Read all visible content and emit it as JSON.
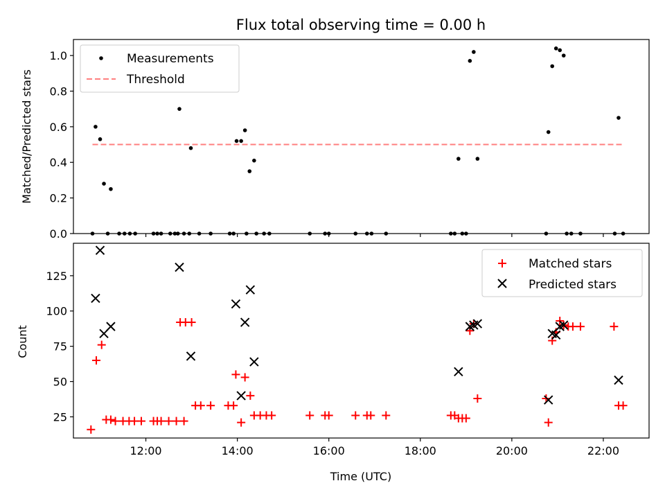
{
  "figure": {
    "title": "Flux total observing time = 0.00 h"
  },
  "colors": {
    "measurement": "#000000",
    "threshold": "#ff7f7f",
    "matched": "#ff0000",
    "predicted": "#000000"
  },
  "chart_data": [
    {
      "type": "scatter",
      "title": "Flux total observing time = 0.00 h",
      "xlabel": "",
      "ylabel": "Matched/Predicted stars",
      "xlim": [
        "10:25",
        "23:00"
      ],
      "ylim": [
        0,
        1.09
      ],
      "yticks": [
        "0.0",
        "0.2",
        "0.4",
        "0.6",
        "0.8",
        "1.0"
      ],
      "legend": {
        "placement": "upper-left",
        "entries": [
          "Measurements",
          "Threshold"
        ]
      },
      "threshold": {
        "name": "Threshold",
        "value": 0.5,
        "x_range": [
          "10:50",
          "22:25"
        ]
      },
      "series": [
        {
          "name": "Measurements",
          "points": [
            [
              "10:50",
              0.0
            ],
            [
              "10:54",
              0.6
            ],
            [
              "11:00",
              0.53
            ],
            [
              "11:05",
              0.28
            ],
            [
              "11:10",
              0.0
            ],
            [
              "11:14",
              0.25
            ],
            [
              "11:25",
              0.0
            ],
            [
              "11:32",
              0.0
            ],
            [
              "11:39",
              0.0
            ],
            [
              "11:46",
              0.0
            ],
            [
              "12:10",
              0.0
            ],
            [
              "12:15",
              0.0
            ],
            [
              "12:20",
              0.0
            ],
            [
              "12:32",
              0.0
            ],
            [
              "12:38",
              0.0
            ],
            [
              "12:42",
              0.0
            ],
            [
              "12:44",
              0.7
            ],
            [
              "12:50",
              0.0
            ],
            [
              "12:57",
              0.0
            ],
            [
              "12:59",
              0.48
            ],
            [
              "13:10",
              0.0
            ],
            [
              "13:25",
              0.0
            ],
            [
              "13:50",
              0.0
            ],
            [
              "13:55",
              0.0
            ],
            [
              "13:59",
              0.52
            ],
            [
              "14:05",
              0.52
            ],
            [
              "14:10",
              0.58
            ],
            [
              "14:12",
              0.0
            ],
            [
              "14:16",
              0.35
            ],
            [
              "14:22",
              0.41
            ],
            [
              "14:25",
              0.0
            ],
            [
              "14:35",
              0.0
            ],
            [
              "14:42",
              0.0
            ],
            [
              "15:35",
              0.0
            ],
            [
              "15:55",
              0.0
            ],
            [
              "16:00",
              0.0
            ],
            [
              "16:35",
              0.0
            ],
            [
              "16:50",
              0.0
            ],
            [
              "16:56",
              0.0
            ],
            [
              "17:15",
              0.0
            ],
            [
              "18:40",
              0.0
            ],
            [
              "18:45",
              0.0
            ],
            [
              "18:50",
              0.42
            ],
            [
              "18:55",
              0.0
            ],
            [
              "19:00",
              0.0
            ],
            [
              "19:05",
              0.97
            ],
            [
              "19:10",
              1.02
            ],
            [
              "19:15",
              0.42
            ],
            [
              "20:45",
              0.0
            ],
            [
              "20:48",
              0.57
            ],
            [
              "20:53",
              0.94
            ],
            [
              "20:58",
              1.04
            ],
            [
              "21:03",
              1.03
            ],
            [
              "21:08",
              1.0
            ],
            [
              "21:12",
              0.0
            ],
            [
              "21:18",
              0.0
            ],
            [
              "21:30",
              0.0
            ],
            [
              "22:15",
              0.0
            ],
            [
              "22:20",
              0.65
            ],
            [
              "22:26",
              0.0
            ]
          ]
        }
      ]
    },
    {
      "type": "scatter",
      "title": "",
      "xlabel": "Time (UTC)",
      "ylabel": "Count",
      "xlim": [
        "10:25",
        "23:00"
      ],
      "ylim": [
        10,
        148
      ],
      "xticks": [
        "12:00",
        "14:00",
        "16:00",
        "18:00",
        "20:00",
        "22:00"
      ],
      "yticks": [
        "25",
        "50",
        "75",
        "100",
        "125"
      ],
      "legend": {
        "placement": "upper-right",
        "entries": [
          "Matched stars",
          "Predicted stars"
        ]
      },
      "series": [
        {
          "name": "Matched stars",
          "points": [
            [
              "10:48",
              16
            ],
            [
              "10:55",
              65
            ],
            [
              "11:02",
              76
            ],
            [
              "11:08",
              23
            ],
            [
              "11:14",
              23
            ],
            [
              "11:20",
              22
            ],
            [
              "11:30",
              22
            ],
            [
              "11:38",
              22
            ],
            [
              "11:45",
              22
            ],
            [
              "11:54",
              22
            ],
            [
              "12:10",
              22
            ],
            [
              "12:15",
              22
            ],
            [
              "12:20",
              22
            ],
            [
              "12:30",
              22
            ],
            [
              "12:40",
              22
            ],
            [
              "12:50",
              22
            ],
            [
              "12:45",
              92
            ],
            [
              "12:52",
              92
            ],
            [
              "13:00",
              92
            ],
            [
              "13:05",
              33
            ],
            [
              "13:12",
              33
            ],
            [
              "13:25",
              33
            ],
            [
              "13:48",
              33
            ],
            [
              "13:55",
              33
            ],
            [
              "13:58",
              55
            ],
            [
              "14:05",
              21
            ],
            [
              "14:10",
              53
            ],
            [
              "14:17",
              40
            ],
            [
              "14:22",
              26
            ],
            [
              "14:30",
              26
            ],
            [
              "14:38",
              26
            ],
            [
              "14:45",
              26
            ],
            [
              "15:35",
              26
            ],
            [
              "15:55",
              26
            ],
            [
              "16:00",
              26
            ],
            [
              "16:35",
              26
            ],
            [
              "16:50",
              26
            ],
            [
              "16:55",
              26
            ],
            [
              "17:15",
              26
            ],
            [
              "18:40",
              26
            ],
            [
              "18:45",
              26
            ],
            [
              "18:50",
              24
            ],
            [
              "18:55",
              24
            ],
            [
              "19:00",
              24
            ],
            [
              "19:05",
              86
            ],
            [
              "19:10",
              91
            ],
            [
              "19:15",
              38
            ],
            [
              "20:45",
              38
            ],
            [
              "20:48",
              21
            ],
            [
              "20:53",
              79
            ],
            [
              "20:58",
              85
            ],
            [
              "21:03",
              93
            ],
            [
              "21:08",
              90
            ],
            [
              "21:14",
              89
            ],
            [
              "21:20",
              89
            ],
            [
              "21:30",
              89
            ],
            [
              "22:14",
              89
            ],
            [
              "22:20",
              33
            ],
            [
              "22:26",
              33
            ]
          ]
        },
        {
          "name": "Predicted stars",
          "points": [
            [
              "10:54",
              109
            ],
            [
              "11:00",
              143
            ],
            [
              "11:05",
              84
            ],
            [
              "11:14",
              89
            ],
            [
              "12:44",
              131
            ],
            [
              "12:59",
              68
            ],
            [
              "13:58",
              105
            ],
            [
              "14:05",
              40
            ],
            [
              "14:10",
              92
            ],
            [
              "14:17",
              115
            ],
            [
              "14:22",
              64
            ],
            [
              "18:50",
              57
            ],
            [
              "19:05",
              89
            ],
            [
              "19:10",
              90
            ],
            [
              "19:15",
              91
            ],
            [
              "20:48",
              37
            ],
            [
              "20:53",
              84
            ],
            [
              "20:58",
              83
            ],
            [
              "21:03",
              89
            ],
            [
              "21:08",
              90
            ],
            [
              "22:20",
              51
            ]
          ]
        }
      ]
    }
  ]
}
